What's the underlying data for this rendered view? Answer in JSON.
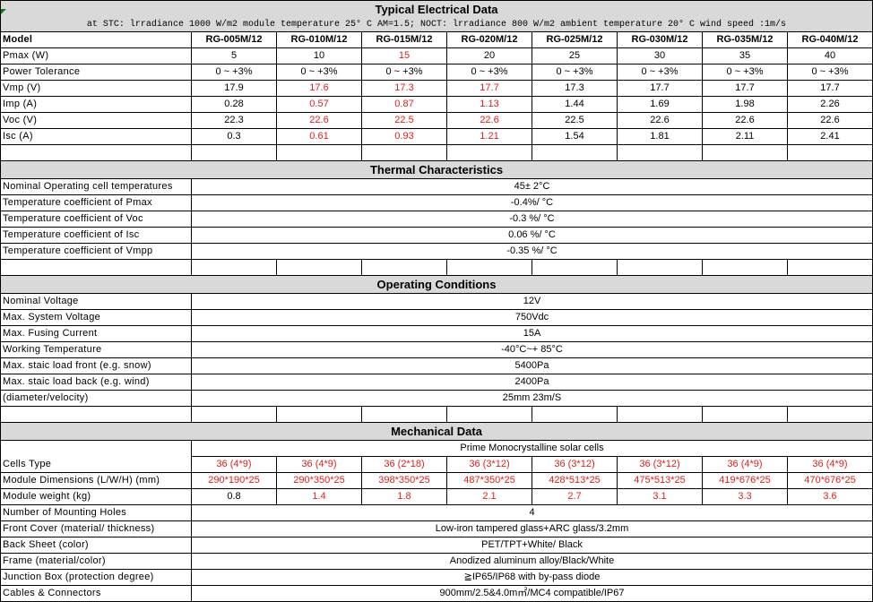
{
  "models": [
    "RG-005M/12",
    "RG-010M/12",
    "RG-015M/12",
    "RG-020M/12",
    "RG-025M/12",
    "RG-030M/12",
    "RG-035M/12",
    "RG-040M/12"
  ],
  "electrical": {
    "title": "Typical Electrical Data",
    "subtitle": "at STC: lrradiance 1000 W/m2 module temperature 25° C AM=1.5; NOCT: lrradiance 800 W/m2 ambient temperature 20° C wind speed :1m/s",
    "model_label": "Model",
    "rows": [
      {
        "label": "Pmax  (W)",
        "values": [
          "5",
          "10",
          "15",
          "20",
          "25",
          "30",
          "35",
          "40"
        ],
        "red": [
          2
        ]
      },
      {
        "label": "Power Tolerance",
        "values": [
          "0 ~ +3%",
          "0 ~ +3%",
          "0 ~ +3%",
          "0 ~ +3%",
          "0 ~ +3%",
          "0 ~ +3%",
          "0 ~ +3%",
          "0 ~ +3%"
        ],
        "red": []
      },
      {
        "label": "Vmp (V)",
        "values": [
          "17.9",
          "17.6",
          "17.3",
          "17.7",
          "17.3",
          "17.7",
          "17.7",
          "17.7"
        ],
        "red": [
          1,
          2,
          3
        ]
      },
      {
        "label": "Imp (A)",
        "values": [
          "0.28",
          "0.57",
          "0.87",
          "1.13",
          "1.44",
          "1.69",
          "1.98",
          "2.26"
        ],
        "red": [
          1,
          2,
          3
        ]
      },
      {
        "label": "Voc (V)",
        "values": [
          "22.3",
          "22.6",
          "22.5",
          "22.6",
          "22.5",
          "22.6",
          "22.6",
          "22.6"
        ],
        "red": [
          1,
          2,
          3
        ]
      },
      {
        "label": "Isc (A)",
        "values": [
          "0.3",
          "0.61",
          "0.93",
          "1.21",
          "1.54",
          "1.81",
          "2.11",
          "2.41"
        ],
        "red": [
          1,
          2,
          3
        ]
      }
    ]
  },
  "thermal": {
    "title": "Thermal Characteristics",
    "rows": [
      {
        "label": "Nominal Operating cell temperatures",
        "value": "45± 2°C"
      },
      {
        "label": "Temperature coefficient of Pmax",
        "value": "-0.4%/ °C"
      },
      {
        "label": "Temperature coefficient of Voc",
        "value": "-0.3 %/ °C"
      },
      {
        "label": "Temperature coefficient of Isc",
        "value": "0.06 %/ °C"
      },
      {
        "label": "Temperature coefficient of Vmpp",
        "value": "-0.35 %/ °C"
      }
    ]
  },
  "operating": {
    "title": "Operating Conditions",
    "rows": [
      {
        "label": "Nominal Voltage",
        "value": "12V"
      },
      {
        "label": "Max. System Voltage",
        "value": "750Vdc"
      },
      {
        "label": "Max. Fusing Current",
        "value": "15A"
      },
      {
        "label": "Working Temperature",
        "value": "-40°C~+ 85°C"
      },
      {
        "label": "Max. staic load front (e.g. snow)",
        "value": "5400Pa"
      },
      {
        "label": "Max. staic load back (e.g. wind)",
        "value": "2400Pa"
      },
      {
        "label": "(diameter/velocity)",
        "value": "25mm 23m/S"
      }
    ]
  },
  "mechanical": {
    "title": "Mechanical Data",
    "cells_label": "Cells Type",
    "cells_heading": "Prime Monocrystalline  solar cells",
    "cells": [
      "36 (4*9)",
      "36 (4*9)",
      "36 (2*18)",
      "36 (3*12)",
      "36 (3*12)",
      "36 (3*12)",
      "36 (4*9)",
      "36 (4*9)"
    ],
    "dim_label": "Module Dimensions (L/W/H) (mm)",
    "dims": [
      "290*190*25",
      "290*350*25",
      "398*350*25",
      "487*350*25",
      "428*513*25",
      "475*513*25",
      "419*676*25",
      "470*676*25"
    ],
    "weight_label": "Module weight (kg)",
    "weights": [
      "0.8",
      "1.4",
      "1.8",
      "2.1",
      "2.7",
      "3.1",
      "3.3",
      "3.6"
    ],
    "rows": [
      {
        "label": "Number of Mounting Holes",
        "value": "4"
      },
      {
        "label": "Front Cover (material/ thickness)",
        "value": "Low-iron tampered glass+ARC glass/3.2mm"
      },
      {
        "label": "Back Sheet (color)",
        "value": "PET/TPT+White/ Black"
      },
      {
        "label": "Frame (material/color)",
        "value": "Anodized aluminum alloy/Black/White"
      },
      {
        "label": "Junction Box (protection degree)",
        "value": "≧IP65/IP68 with by-pass diode"
      },
      {
        "label": "Cables & Connectors",
        "value": "900mm/2.5&4.0m㎡/MC4 compatible/IP67"
      }
    ]
  },
  "colors": {
    "red": "#e0201a",
    "header_bg": "#d9d9d9"
  }
}
